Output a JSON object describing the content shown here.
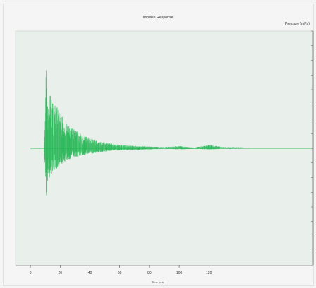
{
  "chart_title": "Impulse Response",
  "channel_label": "Pressure (mPa)",
  "x_axis_label": "Time (ms)",
  "colors": {
    "background": "#f3f4f3",
    "plot_area": "#e9f0eb",
    "signal": "#1fb550",
    "axis": "#555555"
  },
  "chart_data": {
    "type": "line",
    "title": "Impulse Response",
    "xlabel": "Time (ms)",
    "ylabel": "Pressure (mPa)",
    "xlim": [
      -10,
      190
    ],
    "ylim": [
      -1,
      1
    ],
    "x_ticks": [
      0,
      20,
      40,
      60,
      80,
      100,
      120
    ],
    "x_tick_labels": [
      "0",
      "20",
      "40",
      "60",
      "80",
      "100",
      "120"
    ],
    "grid": false,
    "legend": "none",
    "series": [
      {
        "name": "",
        "envelope": {
          "x": [
            0,
            9,
            10,
            10.5,
            12,
            13,
            15,
            18,
            20,
            25,
            30,
            35,
            40,
            45,
            50,
            55,
            60,
            70,
            80,
            90,
            100,
            110,
            120,
            130,
            140,
            150
          ],
          "upper": [
            0.0,
            0.0,
            0.28,
            0.72,
            0.34,
            0.48,
            0.4,
            0.36,
            0.3,
            0.2,
            0.16,
            0.12,
            0.09,
            0.06,
            0.05,
            0.04,
            0.03,
            0.02,
            0.015,
            0.01,
            0.02,
            0.005,
            0.03,
            0.01,
            0.01,
            0.0
          ],
          "lower": [
            0.0,
            0.0,
            -0.2,
            -0.46,
            -0.25,
            -0.26,
            -0.2,
            -0.18,
            -0.15,
            -0.1,
            -0.08,
            -0.06,
            -0.05,
            -0.04,
            -0.03,
            -0.02,
            -0.02,
            -0.015,
            -0.01,
            -0.005,
            -0.01,
            -0.005,
            -0.01,
            -0.005,
            -0.005,
            0.0
          ]
        }
      }
    ]
  }
}
